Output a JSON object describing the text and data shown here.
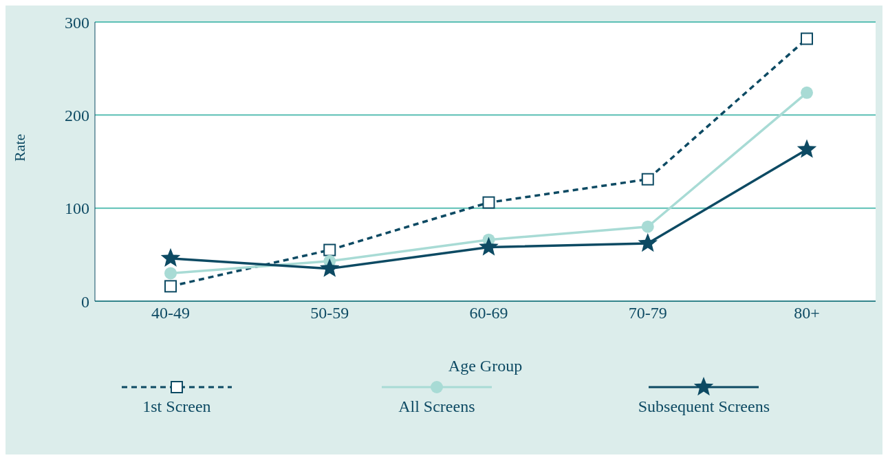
{
  "chart_data": {
    "type": "line",
    "xlabel": "Age Group",
    "ylabel": "Rate",
    "categories": [
      "40-49",
      "50-59",
      "60-69",
      "70-79",
      "80+"
    ],
    "series": [
      {
        "name": "1st Screen",
        "color": "#0d4a63",
        "marker": "square",
        "line_style": "dashed",
        "values": [
          16,
          55,
          106,
          131,
          282
        ]
      },
      {
        "name": "All Screens",
        "color": "#a8dbd5",
        "marker": "circle",
        "line_style": "solid",
        "values": [
          30,
          43,
          66,
          80,
          224
        ]
      },
      {
        "name": "Subsequent Screens",
        "color": "#0d4a63",
        "marker": "star",
        "line_style": "solid",
        "values": [
          46,
          35,
          58,
          62,
          163
        ]
      }
    ],
    "ylim": [
      0,
      300
    ],
    "yticks": [
      0,
      100,
      200,
      300
    ],
    "grid": "y",
    "legend": "bottom"
  }
}
